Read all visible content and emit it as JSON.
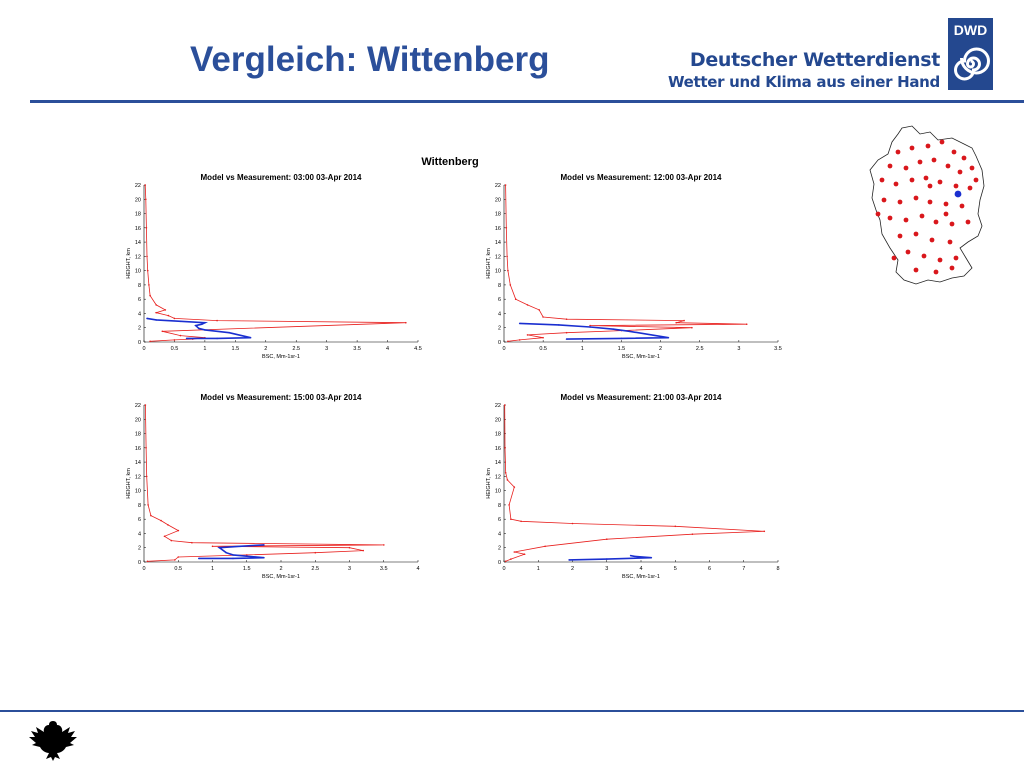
{
  "page": {
    "title": "Vergleich: Wittenberg",
    "brand_line1": "Deutscher Wetterdienst",
    "brand_line2": "Wetter und Klima aus einer Hand",
    "logo_text": "DWD",
    "figure_title": "Wittenberg"
  },
  "colors": {
    "model": "#e8201e",
    "measurement": "#1a2fd0",
    "brand": "#2b4f9a"
  },
  "chart_data": [
    {
      "type": "line",
      "title": "Model vs Measurement: 03:00 03-Apr 2014",
      "xlabel": "BSC, Mm-1sr-1",
      "ylabel": "HEIGHT, km",
      "xlim": [
        0,
        4.5
      ],
      "ylim": [
        0,
        22
      ],
      "xticks": [
        0,
        0.5,
        1,
        1.5,
        2,
        2.5,
        3,
        3.5,
        4,
        4.5
      ],
      "yticks": [
        0,
        2,
        4,
        6,
        8,
        10,
        12,
        14,
        16,
        18,
        20,
        22
      ],
      "series": [
        {
          "role": "model",
          "x": [
            0.1,
            0.5,
            0.8,
            1.0,
            0.6,
            0.3,
            4.3,
            1.2,
            0.5,
            0.4,
            0.2,
            0.35,
            0.2,
            0.1,
            0.08,
            0.06,
            0.05,
            0.04,
            0.03,
            0.02
          ],
          "y": [
            0.1,
            0.3,
            0.4,
            0.6,
            0.9,
            1.5,
            2.7,
            3.0,
            3.3,
            3.7,
            4.1,
            4.5,
            5.2,
            6.5,
            8,
            10,
            12,
            16,
            20,
            22
          ]
        },
        {
          "role": "measurement",
          "x": [
            0.7,
            1.2,
            1.75,
            1.4,
            1.0,
            0.9,
            0.85,
            0.95,
            1.0,
            0.6,
            0.2,
            0.05
          ],
          "y": [
            0.5,
            0.5,
            0.6,
            1.3,
            1.7,
            1.9,
            2.3,
            2.5,
            2.7,
            2.9,
            3.1,
            3.3
          ]
        }
      ]
    },
    {
      "type": "line",
      "title": "Model vs Measurement: 12:00 03-Apr 2014",
      "xlabel": "BSC, Mm-1sr-1",
      "ylabel": "HEIGHT, km",
      "xlim": [
        0,
        3.5
      ],
      "ylim": [
        0,
        22
      ],
      "xticks": [
        0,
        0.5,
        1,
        1.5,
        2,
        2.5,
        3,
        3.5
      ],
      "yticks": [
        0,
        2,
        4,
        6,
        8,
        10,
        12,
        14,
        16,
        18,
        20,
        22
      ],
      "series": [
        {
          "role": "model",
          "x": [
            0.05,
            0.2,
            0.5,
            0.3,
            0.8,
            1.5,
            2.4,
            1.1,
            3.1,
            2.2,
            2.3,
            0.8,
            0.5,
            0.45,
            0.3,
            0.15,
            0.08,
            0.05,
            0.04,
            0.03,
            0.02
          ],
          "y": [
            0.1,
            0.3,
            0.6,
            1.0,
            1.3,
            1.6,
            2.0,
            2.3,
            2.5,
            2.7,
            3.0,
            3.2,
            3.5,
            4.5,
            5.2,
            6.0,
            8,
            10,
            12,
            16,
            22
          ]
        },
        {
          "role": "measurement",
          "x": [
            0.8,
            1.5,
            2.1,
            1.6,
            1.4,
            1.1,
            0.7,
            0.2
          ],
          "y": [
            0.4,
            0.5,
            0.6,
            1.5,
            1.8,
            2.1,
            2.4,
            2.6
          ]
        }
      ]
    },
    {
      "type": "line",
      "title": "Model vs Measurement: 15:00 03-Apr 2014",
      "xlabel": "BSC, Mm-1sr-1",
      "ylabel": "HEIGHT, km",
      "xlim": [
        0,
        4
      ],
      "ylim": [
        0,
        22
      ],
      "xticks": [
        0,
        0.5,
        1,
        1.5,
        2,
        2.5,
        3,
        3.5,
        4
      ],
      "yticks": [
        0,
        2,
        4,
        6,
        8,
        10,
        12,
        14,
        16,
        18,
        20,
        22
      ],
      "series": [
        {
          "role": "model",
          "x": [
            0.05,
            0.45,
            0.5,
            1.5,
            2.5,
            3.2,
            3.0,
            1.0,
            3.5,
            0.7,
            0.4,
            0.3,
            0.5,
            0.35,
            0.25,
            0.1,
            0.06,
            0.04,
            0.03,
            0.02
          ],
          "y": [
            0.1,
            0.3,
            0.7,
            1.0,
            1.3,
            1.6,
            2.0,
            2.2,
            2.4,
            2.7,
            3.0,
            3.6,
            4.4,
            5.2,
            5.8,
            6.5,
            8,
            12,
            16,
            22
          ]
        },
        {
          "role": "measurement",
          "x": [
            0.8,
            1.3,
            1.75,
            1.3,
            1.2,
            1.1,
            1.4,
            1.75
          ],
          "y": [
            0.5,
            0.5,
            0.6,
            1.0,
            1.3,
            2.0,
            2.2,
            2.4
          ]
        }
      ]
    },
    {
      "type": "line",
      "title": "Model vs Measurement: 21:00 03-Apr 2014",
      "xlabel": "BSC, Mm-1sr-1",
      "ylabel": "HEIGHT, km",
      "xlim": [
        0,
        8
      ],
      "ylim": [
        0,
        22
      ],
      "xticks": [
        0,
        1,
        2,
        3,
        4,
        5,
        6,
        7,
        8
      ],
      "yticks": [
        0,
        2,
        4,
        6,
        8,
        10,
        12,
        14,
        16,
        18,
        20,
        22
      ],
      "series": [
        {
          "role": "model",
          "x": [
            0.05,
            0.2,
            0.6,
            0.3,
            1.2,
            3.0,
            5.5,
            7.6,
            5.0,
            2.0,
            0.5,
            0.2,
            0.15,
            0.3,
            0.1,
            0.05,
            0.03,
            0.02
          ],
          "y": [
            0.1,
            0.4,
            1.1,
            1.4,
            2.2,
            3.2,
            3.9,
            4.3,
            5.0,
            5.4,
            5.7,
            6.0,
            8,
            10.5,
            11.5,
            12.5,
            16,
            22
          ]
        },
        {
          "role": "measurement",
          "x": [
            1.9,
            3.0,
            4.3,
            3.8,
            3.7
          ],
          "y": [
            0.3,
            0.4,
            0.6,
            0.8,
            0.9
          ]
        }
      ]
    }
  ]
}
